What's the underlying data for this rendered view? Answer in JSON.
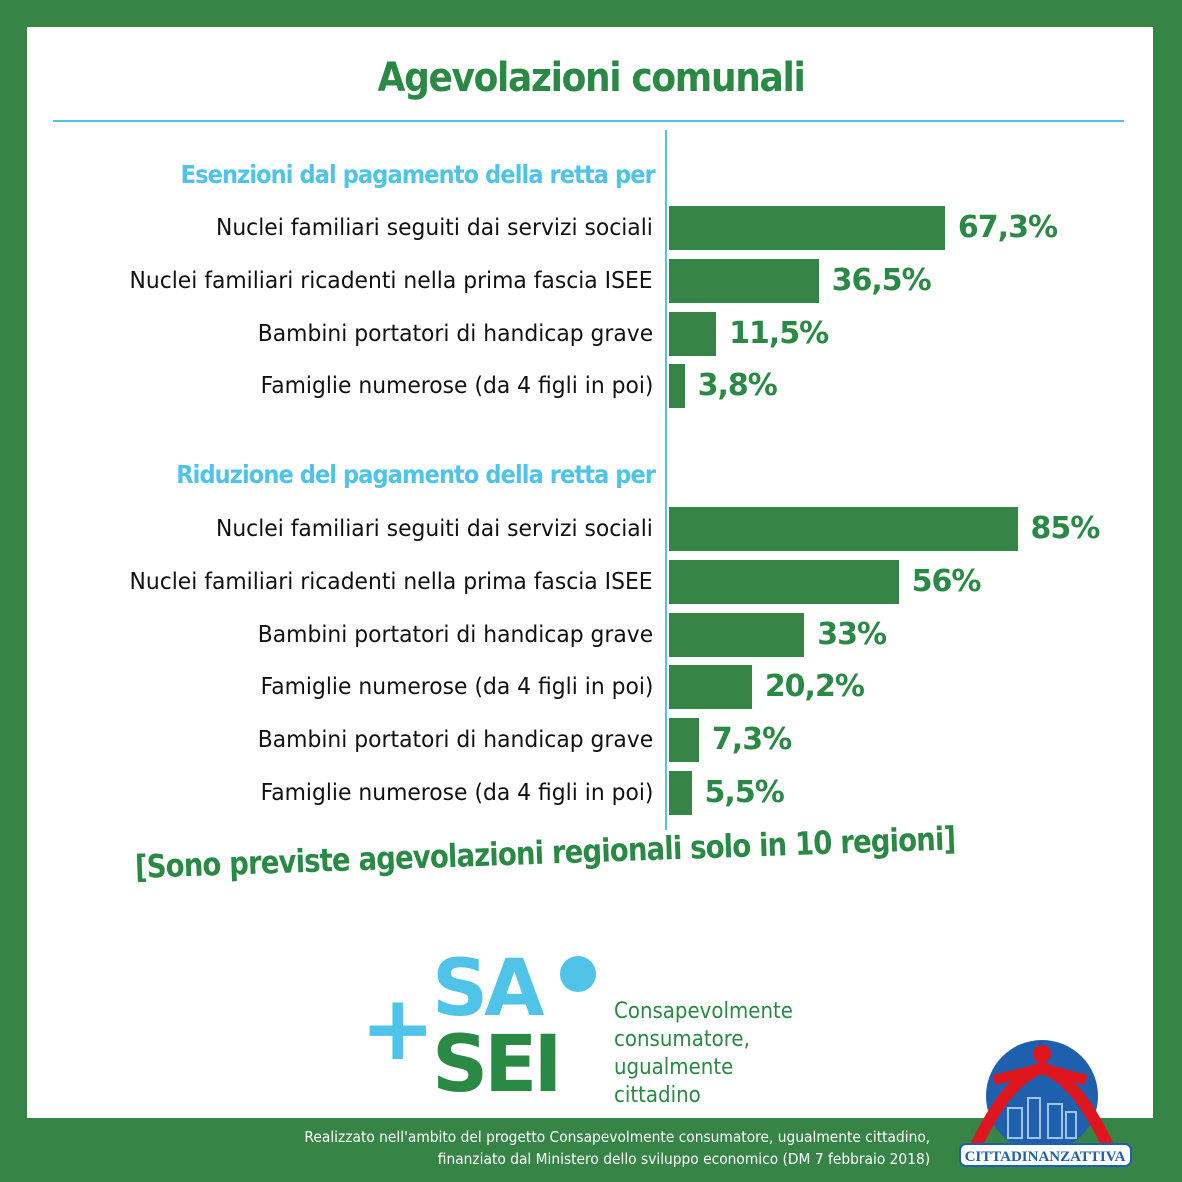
{
  "title": "Agevolazioni comunali",
  "colors": {
    "border": "#368446",
    "bars": "#368446",
    "values": "#2a8a45",
    "group_headers": "#4fc3e8"
  },
  "chart_data": {
    "type": "bar",
    "orientation": "horizontal",
    "unit": "%",
    "groups": [
      {
        "title": "Esenzioni dal pagamento della retta per",
        "categories": [
          "Nuclei familiari seguiti dai servizi sociali",
          "Nuclei familiari ricadenti nella prima fascia ISEE",
          "Bambini portatori di handicap grave",
          "Famiglie numerose (da 4 figli in poi)"
        ],
        "values": [
          67.3,
          36.5,
          11.5,
          3.8
        ],
        "labels": [
          "67,3%",
          "36,5%",
          "11,5%",
          "3,8%"
        ]
      },
      {
        "title": "Riduzione del pagamento della retta per",
        "categories": [
          "Nuclei familiari seguiti dai servizi sociali",
          "Nuclei familiari ricadenti nella prima fascia ISEE",
          "Bambini portatori di handicap grave",
          "Famiglie numerose (da 4 figli in poi)",
          "Bambini portatori di handicap grave",
          "Famiglie numerose (da 4 figli in poi)"
        ],
        "values": [
          85,
          56,
          33,
          20.2,
          7.3,
          5.5
        ],
        "labels": [
          "85%",
          "56%",
          "33%",
          "20,2%",
          "7,3%",
          "5,5%"
        ]
      }
    ]
  },
  "note": "[Sono previste agevolazioni regionali solo in 10 regioni]",
  "logo": {
    "plus": "+",
    "sa": "SA",
    "sei": "SEI",
    "tagline": [
      "Consapevolmente",
      "consumatore,",
      "ugualmente",
      "cittadino"
    ]
  },
  "footer": [
    "Realizzato nell'ambito del progetto Consapevolmente consumatore, ugualmente cittadino,",
    "finanziato dal Ministero dello sviluppo economico (DM 7 febbraio 2018)"
  ],
  "partner_logo": "CITTADINANZATTIVA"
}
